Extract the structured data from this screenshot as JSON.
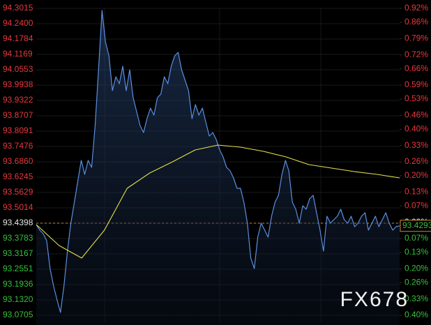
{
  "chart_data": {
    "type": "intraday",
    "base": 93.4398,
    "last_price": 93.4293,
    "watermark": "FX678",
    "up_color": "#e8383d",
    "down_color": "#35c23a",
    "base_color": "#e6e6e6",
    "grid": true,
    "ylim": [
      93.0705,
      94.3015
    ],
    "yticks": [
      {
        "value": 94.3015,
        "label": "94.3015"
      },
      {
        "value": 94.24,
        "label": "94.2400"
      },
      {
        "value": 94.1784,
        "label": "94.1784"
      },
      {
        "value": 94.1169,
        "label": "94.1169"
      },
      {
        "value": 94.0553,
        "label": "94.0553"
      },
      {
        "value": 93.9938,
        "label": "93.9938"
      },
      {
        "value": 93.9322,
        "label": "93.9322"
      },
      {
        "value": 93.8707,
        "label": "93.8707"
      },
      {
        "value": 93.8091,
        "label": "93.8091"
      },
      {
        "value": 93.7476,
        "label": "93.7476"
      },
      {
        "value": 93.686,
        "label": "93.6860"
      },
      {
        "value": 93.6245,
        "label": "93.6245"
      },
      {
        "value": 93.5629,
        "label": "93.5629"
      },
      {
        "value": 93.5014,
        "label": "93.5014"
      },
      {
        "value": 93.4398,
        "label": "93.4398"
      },
      {
        "value": 93.3783,
        "label": "93.3783"
      },
      {
        "value": 93.3167,
        "label": "93.3167"
      },
      {
        "value": 93.2551,
        "label": "93.2551"
      },
      {
        "value": 93.1936,
        "label": "93.1936"
      },
      {
        "value": 93.132,
        "label": "93.1320"
      },
      {
        "value": 93.0705,
        "label": "93.0705"
      }
    ],
    "y2lim": [
      -0.4,
      0.92
    ],
    "y2ticks": [
      {
        "value": 0.92,
        "label": "0.92%"
      },
      {
        "value": 0.86,
        "label": "0.86%"
      },
      {
        "value": 0.79,
        "label": "0.79%"
      },
      {
        "value": 0.72,
        "label": "0.72%"
      },
      {
        "value": 0.66,
        "label": "0.66%"
      },
      {
        "value": 0.59,
        "label": "0.59%"
      },
      {
        "value": 0.53,
        "label": "0.53%"
      },
      {
        "value": 0.46,
        "label": "0.46%"
      },
      {
        "value": 0.4,
        "label": "0.40%"
      },
      {
        "value": 0.33,
        "label": "0.33%"
      },
      {
        "value": 0.26,
        "label": "0.26%"
      },
      {
        "value": 0.2,
        "label": "0.20%"
      },
      {
        "value": 0.13,
        "label": "0.13%"
      },
      {
        "value": 0.07,
        "label": "0.07%"
      },
      {
        "value": 0,
        "label": "0.00%"
      },
      {
        "value": -0.07,
        "label": "0.07%"
      },
      {
        "value": -0.13,
        "label": "0.13%"
      },
      {
        "value": -0.2,
        "label": "0.20%"
      },
      {
        "value": -0.26,
        "label": "0.26%"
      },
      {
        "value": -0.33,
        "label": "0.33%"
      },
      {
        "value": -0.4,
        "label": "0.40%"
      }
    ],
    "series": [
      {
        "color": "#5b8fe0",
        "values": [
          93.4342,
          93.4118,
          93.3978,
          93.3699,
          93.258,
          93.188,
          93.1321,
          93.0817,
          93.188,
          93.3279,
          93.4398,
          93.5237,
          93.6077,
          93.6916,
          93.6356,
          93.6916,
          93.6636,
          93.8315,
          94.0553,
          94.2931,
          94.1672,
          94.1113,
          93.9714,
          94.0273,
          93.9993,
          94.0693,
          93.9714,
          94.0553,
          93.9434,
          93.8874,
          93.8315,
          93.8035,
          93.8595,
          93.9014,
          93.8735,
          93.9434,
          93.9574,
          94.0273,
          93.9993,
          94.0693,
          94.1113,
          94.1252,
          94.0553,
          94.0133,
          93.9714,
          93.8595,
          93.9154,
          93.8735,
          93.9014,
          93.8455,
          93.7895,
          93.8035,
          93.7755,
          93.7336,
          93.7056,
          93.6636,
          93.6496,
          93.6217,
          93.5797,
          93.5797,
          93.5237,
          93.4398,
          93.2999,
          93.258,
          93.3838,
          93.4398,
          93.4118,
          93.3838,
          93.4678,
          93.5237,
          93.5517,
          93.6356,
          93.6916,
          93.6496,
          93.5237,
          93.4958,
          93.4398,
          93.5098,
          93.4958,
          93.5377,
          93.5517,
          93.4818,
          93.4118,
          93.3279,
          93.4678,
          93.4398,
          93.4538,
          93.4678,
          93.4958,
          93.4538,
          93.4398,
          93.4678,
          93.4258,
          93.4398,
          93.4678,
          93.4818,
          93.4118,
          93.4398,
          93.4678,
          93.4258,
          93.4538,
          93.4818,
          93.4398,
          93.4118,
          93.4258,
          93.4293
        ]
      },
      {
        "color": "#e8e04a",
        "values": [
          93.4342,
          93.3503,
          93.2999,
          93.4118,
          93.5797,
          93.6412,
          93.686,
          93.7336,
          93.7532,
          93.7448,
          93.728,
          93.7056,
          93.6748,
          93.6608,
          93.6468,
          93.6356,
          93.6217
        ]
      }
    ]
  }
}
